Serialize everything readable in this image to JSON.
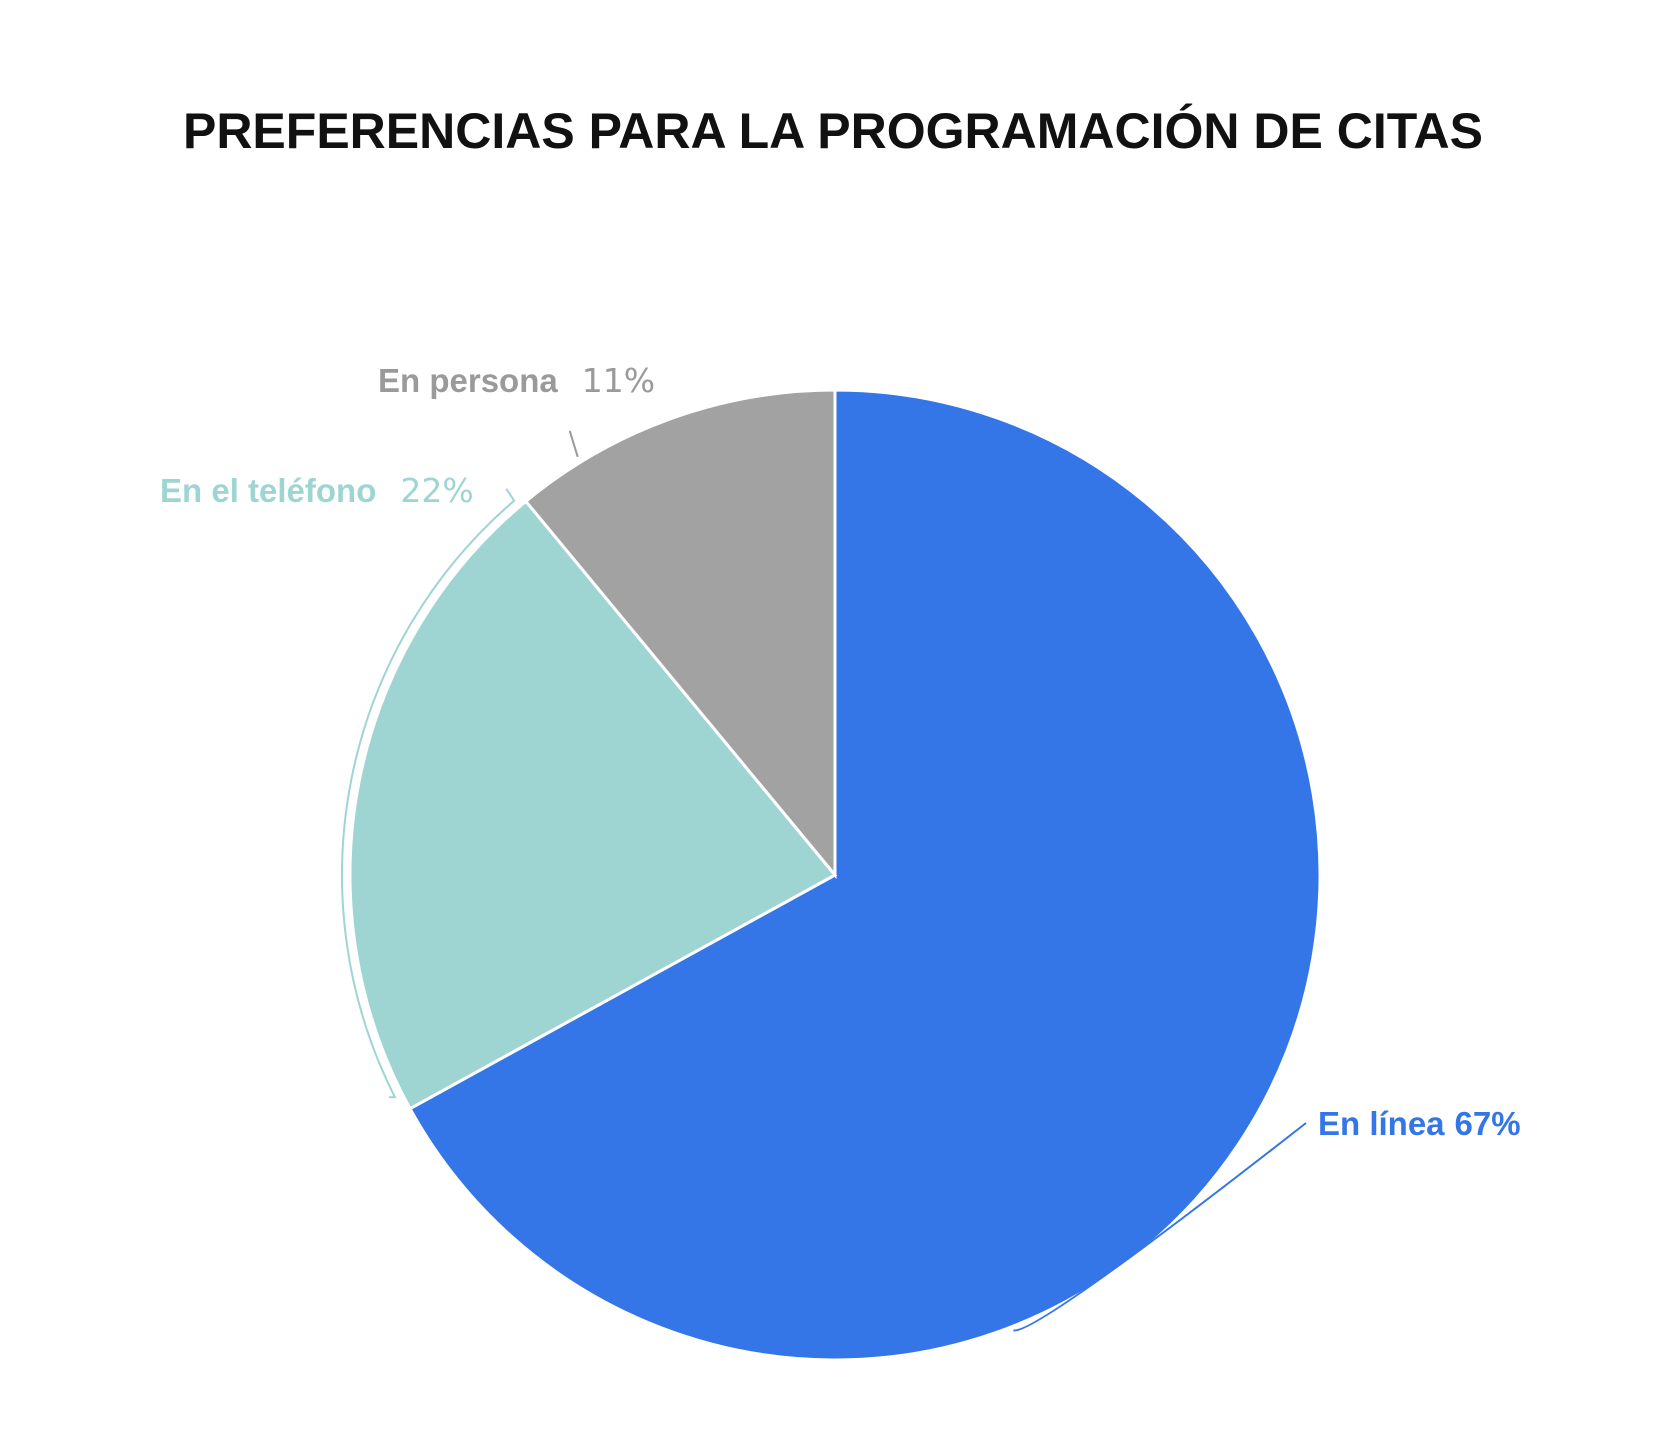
{
  "chart_data": {
    "type": "pie",
    "title": "PREFERENCIAS PARA LA PROGRAMACIÓN DE CITAS",
    "start_angle_deg": 0,
    "direction": "clockwise",
    "slices": [
      {
        "label": "En línea",
        "value": 67,
        "value_label": "67%",
        "color": "#3475e8"
      },
      {
        "label": "En el teléfono",
        "value": 22,
        "value_label": "22%",
        "color": "#9ed5d2"
      },
      {
        "label": "En persona",
        "value": 11,
        "value_label": "11%",
        "color": "#a2a2a2"
      }
    ],
    "label_colors": {
      "En línea": "#3475e8",
      "En el teléfono": "#9ed5d2",
      "En persona": "#9a9a9a"
    },
    "slice_border_color": "#ffffff"
  }
}
